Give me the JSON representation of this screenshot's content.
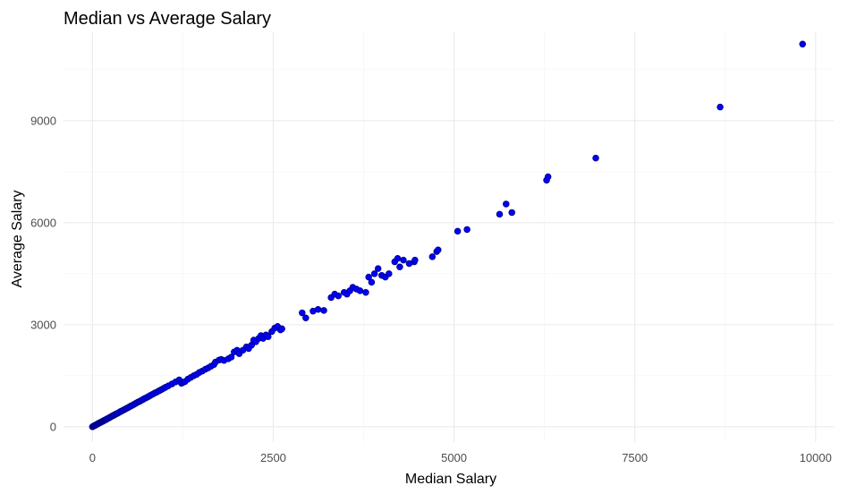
{
  "chart_data": {
    "type": "scatter",
    "title": "Median vs Average Salary",
    "xlabel": "Median Salary",
    "ylabel": "Average Salary",
    "xlim": [
      -400,
      10250
    ],
    "ylim": [
      -450,
      11600
    ],
    "x_ticks": [
      0,
      2500,
      5000,
      7500,
      10000
    ],
    "x_tick_labels": [
      "0",
      "2500",
      "5000",
      "7500",
      "10000"
    ],
    "y_ticks": [
      0,
      3000,
      6000,
      9000
    ],
    "y_tick_labels": [
      "0",
      "3000",
      "6000",
      "9000"
    ],
    "grid": true,
    "legend": false,
    "point_color": "#0000ff",
    "point_outline": "#00008b",
    "points": [
      [
        0,
        0
      ],
      [
        10,
        15
      ],
      [
        20,
        25
      ],
      [
        30,
        35
      ],
      [
        40,
        45
      ],
      [
        50,
        60
      ],
      [
        60,
        70
      ],
      [
        70,
        80
      ],
      [
        80,
        95
      ],
      [
        90,
        105
      ],
      [
        100,
        115
      ],
      [
        110,
        125
      ],
      [
        120,
        140
      ],
      [
        130,
        150
      ],
      [
        140,
        160
      ],
      [
        150,
        170
      ],
      [
        160,
        185
      ],
      [
        170,
        195
      ],
      [
        180,
        205
      ],
      [
        190,
        215
      ],
      [
        200,
        230
      ],
      [
        215,
        245
      ],
      [
        230,
        265
      ],
      [
        245,
        280
      ],
      [
        260,
        300
      ],
      [
        275,
        315
      ],
      [
        290,
        335
      ],
      [
        305,
        350
      ],
      [
        320,
        370
      ],
      [
        335,
        385
      ],
      [
        350,
        400
      ],
      [
        370,
        425
      ],
      [
        390,
        450
      ],
      [
        410,
        470
      ],
      [
        430,
        495
      ],
      [
        450,
        515
      ],
      [
        470,
        540
      ],
      [
        490,
        560
      ],
      [
        510,
        585
      ],
      [
        530,
        610
      ],
      [
        550,
        630
      ],
      [
        575,
        660
      ],
      [
        600,
        690
      ],
      [
        625,
        720
      ],
      [
        650,
        745
      ],
      [
        675,
        775
      ],
      [
        700,
        805
      ],
      [
        725,
        835
      ],
      [
        750,
        860
      ],
      [
        775,
        890
      ],
      [
        800,
        920
      ],
      [
        830,
        955
      ],
      [
        860,
        990
      ],
      [
        890,
        1020
      ],
      [
        920,
        1055
      ],
      [
        950,
        1090
      ],
      [
        980,
        1125
      ],
      [
        1010,
        1160
      ],
      [
        1050,
        1205
      ],
      [
        1100,
        1260
      ],
      [
        1150,
        1320
      ],
      [
        1200,
        1380
      ],
      [
        1230,
        1280
      ],
      [
        1250,
        1300
      ],
      [
        1280,
        1330
      ],
      [
        1320,
        1400
      ],
      [
        1360,
        1450
      ],
      [
        1400,
        1500
      ],
      [
        1440,
        1540
      ],
      [
        1480,
        1600
      ],
      [
        1520,
        1640
      ],
      [
        1560,
        1690
      ],
      [
        1600,
        1730
      ],
      [
        1640,
        1780
      ],
      [
        1680,
        1830
      ],
      [
        1700,
        1900
      ],
      [
        1750,
        1960
      ],
      [
        1780,
        1980
      ],
      [
        1820,
        1950
      ],
      [
        1880,
        2000
      ],
      [
        1920,
        2050
      ],
      [
        1960,
        2200
      ],
      [
        2000,
        2250
      ],
      [
        2030,
        2150
      ],
      [
        2080,
        2250
      ],
      [
        2130,
        2350
      ],
      [
        2160,
        2300
      ],
      [
        2200,
        2400
      ],
      [
        2230,
        2550
      ],
      [
        2260,
        2500
      ],
      [
        2300,
        2600
      ],
      [
        2330,
        2680
      ],
      [
        2360,
        2600
      ],
      [
        2400,
        2700
      ],
      [
        2430,
        2650
      ],
      [
        2480,
        2800
      ],
      [
        2520,
        2900
      ],
      [
        2560,
        2950
      ],
      [
        2600,
        2850
      ],
      [
        2620,
        2880
      ],
      [
        2900,
        3350
      ],
      [
        2950,
        3200
      ],
      [
        3050,
        3400
      ],
      [
        3120,
        3450
      ],
      [
        3200,
        3420
      ],
      [
        3300,
        3800
      ],
      [
        3350,
        3900
      ],
      [
        3400,
        3850
      ],
      [
        3480,
        3950
      ],
      [
        3520,
        3900
      ],
      [
        3560,
        4000
      ],
      [
        3600,
        4100
      ],
      [
        3650,
        4050
      ],
      [
        3700,
        4000
      ],
      [
        3780,
        3950
      ],
      [
        3820,
        4400
      ],
      [
        3860,
        4250
      ],
      [
        3900,
        4500
      ],
      [
        3950,
        4650
      ],
      [
        4000,
        4450
      ],
      [
        4050,
        4400
      ],
      [
        4100,
        4500
      ],
      [
        4180,
        4850
      ],
      [
        4220,
        4950
      ],
      [
        4250,
        4700
      ],
      [
        4300,
        4900
      ],
      [
        4380,
        4800
      ],
      [
        4450,
        4850
      ],
      [
        4460,
        4900
      ],
      [
        4700,
        5000
      ],
      [
        4760,
        5150
      ],
      [
        4780,
        5200
      ],
      [
        5050,
        5750
      ],
      [
        5180,
        5800
      ],
      [
        5630,
        6250
      ],
      [
        5720,
        6550
      ],
      [
        5800,
        6300
      ],
      [
        6280,
        7250
      ],
      [
        6300,
        7350
      ],
      [
        6960,
        7900
      ],
      [
        8680,
        9400
      ],
      [
        9820,
        11250
      ]
    ]
  }
}
